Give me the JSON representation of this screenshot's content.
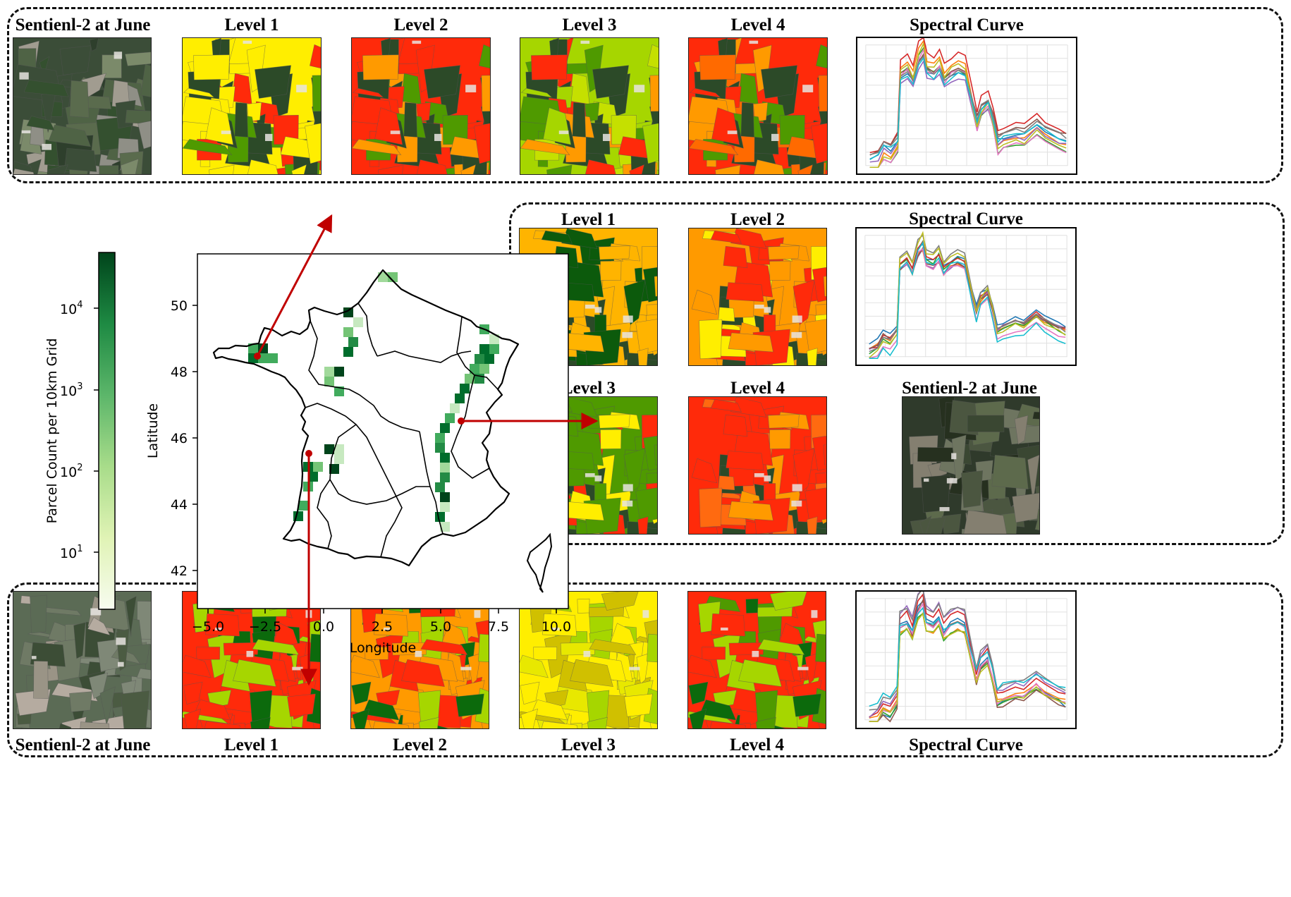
{
  "labels": {
    "s2": "Sentienl-2 at June",
    "l1": "Level 1",
    "l2": "Level 2",
    "l3": "Level 3",
    "l4": "Level 4",
    "spectral": "Spectral Curve"
  },
  "colorbar": {
    "label": "Parcel Count per 10km Grid",
    "ticks": [
      "10",
      "10",
      "10",
      "10"
    ],
    "exponents": [
      "4",
      "3",
      "2",
      "1"
    ],
    "color_low": "#f7fcf0",
    "color_high": "#00441b"
  },
  "map": {
    "xlabel": "Longitude",
    "ylabel": "Latitude",
    "xticks": [
      "−5.0",
      "−2.5",
      "0.0",
      "2.5",
      "5.0",
      "7.5",
      "10.0"
    ],
    "yticks": [
      "50",
      "48",
      "46",
      "44",
      "42"
    ]
  },
  "colors": {
    "level_red": "#ff2a0a",
    "level_orange": "#ff9a00",
    "level_amber": "#ffb400",
    "level_yellow": "#ffee00",
    "level_lime": "#a6d600",
    "level_green": "#4f9a00",
    "level_darkgreen": "#0c6a0c",
    "arrow": "#c00000"
  }
}
